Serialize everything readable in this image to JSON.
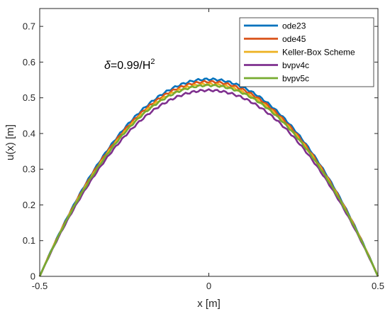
{
  "chart_data": {
    "type": "line",
    "xlabel": "x [m]",
    "ylabel": "u(x) [m]",
    "xlim": [
      -0.5,
      0.5
    ],
    "ylim": [
      0,
      0.75
    ],
    "xticks": [
      "-0.5",
      "0",
      "0.5"
    ],
    "yticks": [
      "0",
      "0.1",
      "0.2",
      "0.3",
      "0.4",
      "0.5",
      "0.6",
      "0.7"
    ],
    "grid": false,
    "legend_position": "top-right",
    "annotation": {
      "symbol": "δ",
      "text": "=0.99/H",
      "superscript": "2"
    },
    "series": [
      {
        "name": "ode23",
        "color": "#0072BD",
        "peak": 0.552
      },
      {
        "name": "ode45",
        "color": "#D95319",
        "peak": 0.545
      },
      {
        "name": "Keller-Box Scheme",
        "color": "#EDB120",
        "peak": 0.538
      },
      {
        "name": "bvpv4c",
        "color": "#7E2F8E",
        "peak": 0.521
      },
      {
        "name": "bvpv5c",
        "color": "#77AC30",
        "peak": 0.535
      }
    ]
  }
}
